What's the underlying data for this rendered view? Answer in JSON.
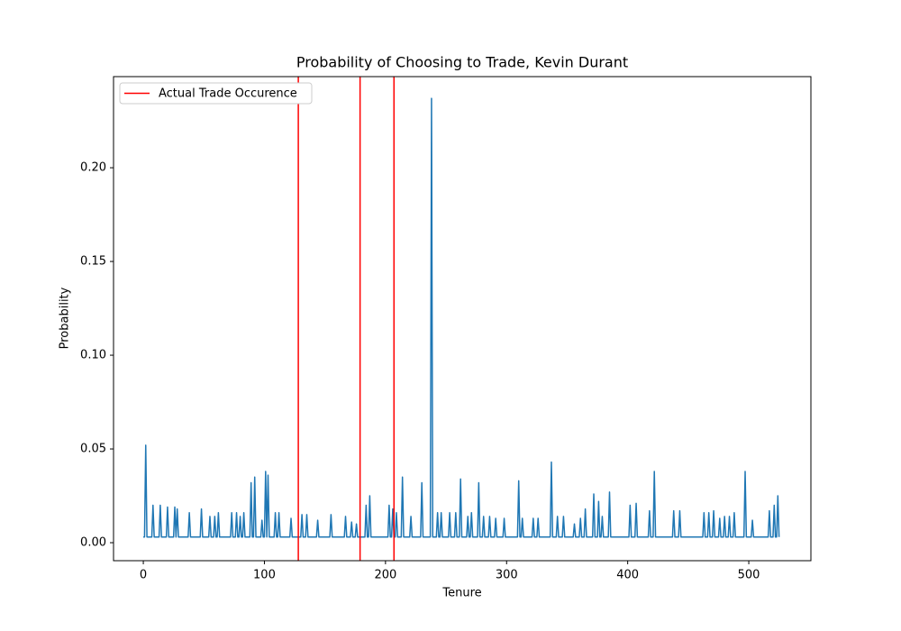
{
  "chart_data": {
    "type": "line",
    "title": "Probability of Choosing to Trade, Kevin Durant",
    "xlabel": "Tenure",
    "ylabel": "Probability",
    "xlim": [
      -24.6,
      551.3
    ],
    "ylim": [
      -0.0096,
      0.2486
    ],
    "xticks": [
      0,
      100,
      200,
      300,
      400,
      500
    ],
    "yticks": [
      {
        "value": 0,
        "label": "0.00"
      },
      {
        "value": 0.05,
        "label": "0.05"
      },
      {
        "value": 0.1,
        "label": "0.10"
      },
      {
        "value": 0.15,
        "label": "0.15"
      },
      {
        "value": 0.2,
        "label": "0.20"
      }
    ],
    "grid": false,
    "legend": "upper left",
    "vlines": {
      "name": "Actual Trade Occurence",
      "color": "#ff0000",
      "x": [
        128,
        179,
        207
      ]
    },
    "series": [
      {
        "color": "#1f77b4",
        "x": [
          0,
          1,
          2,
          3,
          7,
          8,
          9,
          13,
          14,
          15,
          19,
          20,
          21,
          25,
          26,
          27,
          28,
          29,
          37,
          38,
          39,
          47,
          48,
          49,
          54,
          55,
          56,
          58,
          59,
          60,
          61,
          62,
          63,
          72,
          73,
          74,
          76,
          77,
          78,
          79,
          80,
          81,
          82,
          83,
          84,
          88,
          89,
          90,
          91,
          92,
          93,
          97,
          98,
          99,
          100,
          101,
          102,
          103,
          104,
          108,
          109,
          110,
          111,
          112,
          113,
          121,
          122,
          123,
          130,
          131,
          132,
          134,
          135,
          136,
          143,
          144,
          145,
          154,
          155,
          156,
          166,
          167,
          168,
          171,
          172,
          173,
          175,
          176,
          177,
          183,
          184,
          185,
          186,
          187,
          188,
          202,
          203,
          204,
          205,
          206,
          207,
          208,
          209,
          210,
          213,
          214,
          215,
          220,
          221,
          222,
          229,
          230,
          231,
          237,
          238,
          239,
          242,
          243,
          244,
          245,
          246,
          247,
          252,
          253,
          254,
          257,
          258,
          259,
          261,
          262,
          263,
          267,
          268,
          269,
          270,
          271,
          272,
          276,
          277,
          278,
          280,
          281,
          282,
          285,
          286,
          287,
          290,
          291,
          292,
          297,
          298,
          299,
          309,
          310,
          311,
          312,
          313,
          314,
          321,
          322,
          323,
          325,
          326,
          327,
          336,
          337,
          338,
          341,
          342,
          343,
          346,
          347,
          348,
          355,
          356,
          357,
          360,
          361,
          362,
          364,
          365,
          366,
          371,
          372,
          373,
          375,
          376,
          377,
          378,
          379,
          380,
          384,
          385,
          386,
          401,
          402,
          403,
          406,
          407,
          408,
          417,
          418,
          419,
          421,
          422,
          423,
          437,
          438,
          439,
          442,
          443,
          444,
          462,
          463,
          464,
          466,
          467,
          468,
          470,
          471,
          472,
          475,
          476,
          477,
          479,
          480,
          481,
          483,
          484,
          485,
          487,
          488,
          489,
          496,
          497,
          498,
          502,
          503,
          504,
          516,
          517,
          518,
          520,
          521,
          522,
          523,
          524,
          525
        ],
        "values": [
          0.003,
          0.003,
          0.052,
          0.003,
          0.003,
          0.02,
          0.003,
          0.003,
          0.02,
          0.003,
          0.003,
          0.019,
          0.003,
          0.003,
          0.019,
          0.003,
          0.018,
          0.003,
          0.003,
          0.016,
          0.003,
          0.003,
          0.018,
          0.003,
          0.003,
          0.014,
          0.003,
          0.003,
          0.014,
          0.003,
          0.003,
          0.016,
          0.003,
          0.003,
          0.016,
          0.003,
          0.003,
          0.016,
          0.003,
          0.003,
          0.014,
          0.003,
          0.003,
          0.016,
          0.003,
          0.003,
          0.032,
          0.003,
          0.003,
          0.035,
          0.003,
          0.003,
          0.012,
          0.003,
          0.003,
          0.038,
          0.003,
          0.036,
          0.003,
          0.003,
          0.016,
          0.003,
          0.003,
          0.016,
          0.003,
          0.003,
          0.013,
          0.003,
          0.003,
          0.015,
          0.003,
          0.003,
          0.015,
          0.003,
          0.003,
          0.012,
          0.003,
          0.003,
          0.015,
          0.003,
          0.003,
          0.014,
          0.003,
          0.003,
          0.011,
          0.003,
          0.003,
          0.01,
          0.003,
          0.003,
          0.02,
          0.003,
          0.003,
          0.025,
          0.003,
          0.003,
          0.02,
          0.003,
          0.003,
          0.018,
          0.003,
          0.003,
          0.016,
          0.003,
          0.003,
          0.035,
          0.003,
          0.003,
          0.014,
          0.003,
          0.003,
          0.032,
          0.003,
          0.003,
          0.237,
          0.003,
          0.003,
          0.016,
          0.003,
          0.003,
          0.016,
          0.003,
          0.003,
          0.016,
          0.003,
          0.003,
          0.016,
          0.003,
          0.003,
          0.034,
          0.003,
          0.003,
          0.014,
          0.003,
          0.003,
          0.016,
          0.003,
          0.003,
          0.032,
          0.003,
          0.003,
          0.014,
          0.003,
          0.003,
          0.014,
          0.003,
          0.003,
          0.013,
          0.003,
          0.003,
          0.013,
          0.003,
          0.003,
          0.033,
          0.003,
          0.003,
          0.013,
          0.003,
          0.003,
          0.013,
          0.003,
          0.003,
          0.013,
          0.003,
          0.003,
          0.043,
          0.003,
          0.003,
          0.014,
          0.003,
          0.003,
          0.014,
          0.003,
          0.003,
          0.01,
          0.003,
          0.003,
          0.013,
          0.003,
          0.003,
          0.018,
          0.003,
          0.003,
          0.026,
          0.003,
          0.003,
          0.022,
          0.003,
          0.003,
          0.014,
          0.003,
          0.003,
          0.027,
          0.003,
          0.003,
          0.02,
          0.003,
          0.003,
          0.021,
          0.003,
          0.003,
          0.017,
          0.003,
          0.003,
          0.038,
          0.003,
          0.003,
          0.017,
          0.003,
          0.003,
          0.017,
          0.003,
          0.003,
          0.016,
          0.003,
          0.003,
          0.016,
          0.003,
          0.003,
          0.017,
          0.003,
          0.003,
          0.013,
          0.003,
          0.003,
          0.014,
          0.003,
          0.003,
          0.014,
          0.003,
          0.003,
          0.016,
          0.003,
          0.003,
          0.038,
          0.003,
          0.003,
          0.012,
          0.003,
          0.003,
          0.017,
          0.003,
          0.003,
          0.02,
          0.003,
          0.003,
          0.025,
          0.003
        ]
      }
    ]
  }
}
